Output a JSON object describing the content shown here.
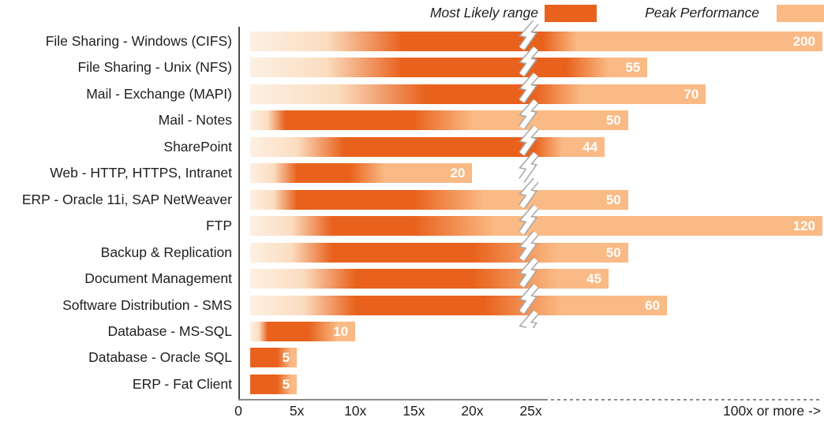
{
  "legend": [
    {
      "label": "Most Likely range",
      "color": "#E8621D"
    },
    {
      "label": "Peak Performance",
      "color": "#FABA85"
    }
  ],
  "chart_data": {
    "type": "bar",
    "orientation": "horizontal",
    "title": "",
    "xlabel": "",
    "ylabel": "",
    "x_axis": {
      "ticks": [
        {
          "label": "0",
          "value": 0
        },
        {
          "label": "5x",
          "value": 5
        },
        {
          "label": "10x",
          "value": 10
        },
        {
          "label": "15x",
          "value": 15
        },
        {
          "label": "20x",
          "value": 20
        },
        {
          "label": "25x",
          "value": 25
        }
      ],
      "break_at_value": 25,
      "right_label": "100x or more ->",
      "grid": false
    },
    "bar_start_value": 1,
    "rows": [
      {
        "label": "File Sharing - Windows (CIFS)",
        "likely_start": 14,
        "likely_end": 28,
        "fade_end": 37,
        "peak": 200
      },
      {
        "label": "File Sharing - Unix (NFS)",
        "likely_start": 14,
        "likely_end": 34,
        "fade_end": 45,
        "peak": 55
      },
      {
        "label": "Mail - Exchange (MAPI)",
        "likely_start": 16,
        "likely_end": 26,
        "fade_end": 38,
        "peak": 70
      },
      {
        "label": "Mail - Notes",
        "likely_start": 4,
        "likely_end": 15,
        "fade_end": 20,
        "peak": 50
      },
      {
        "label": "SharePoint",
        "likely_start": 9,
        "likely_end": 26,
        "fade_end": 33,
        "peak": 44
      },
      {
        "label": "Web - HTTP, HTTPS, Intranet",
        "likely_start": 5,
        "likely_end": 9.5,
        "fade_end": 12.5,
        "peak": 20
      },
      {
        "label": "ERP - Oracle 11i, SAP NetWeaver",
        "likely_start": 5,
        "likely_end": 15,
        "fade_end": 21,
        "peak": 50
      },
      {
        "label": "FTP",
        "likely_start": 8,
        "likely_end": 15,
        "fade_end": 22,
        "peak": 120
      },
      {
        "label": "Backup & Replication",
        "likely_start": 8,
        "likely_end": 20,
        "fade_end": 32,
        "peak": 50
      },
      {
        "label": "Document Management",
        "likely_start": 10,
        "likely_end": 20,
        "fade_end": 32,
        "peak": 45
      },
      {
        "label": "Software Distribution - SMS",
        "likely_start": 10,
        "likely_end": 21,
        "fade_end": 33,
        "peak": 60
      },
      {
        "label": "Database - MS-SQL",
        "likely_start": 2.5,
        "likely_end": 6,
        "fade_end": 8.5,
        "peak": 10
      },
      {
        "label": "Database - Oracle SQL",
        "likely_start": 1,
        "likely_end": 3.3,
        "fade_end": 4.5,
        "peak": 5
      },
      {
        "label": "ERP - Fat Client",
        "likely_start": 1,
        "likely_end": 3.3,
        "fade_end": 4.5,
        "peak": 5
      }
    ],
    "colors": {
      "most_likely": "#E8621D",
      "peak": "#FABA85",
      "bar_fade_start": "#FDF0E3",
      "bar_fade_mid": "#FBDDC0",
      "axis": "#8a8a8a",
      "text": "#1e1e1e",
      "value_text": "#ffffff"
    }
  }
}
